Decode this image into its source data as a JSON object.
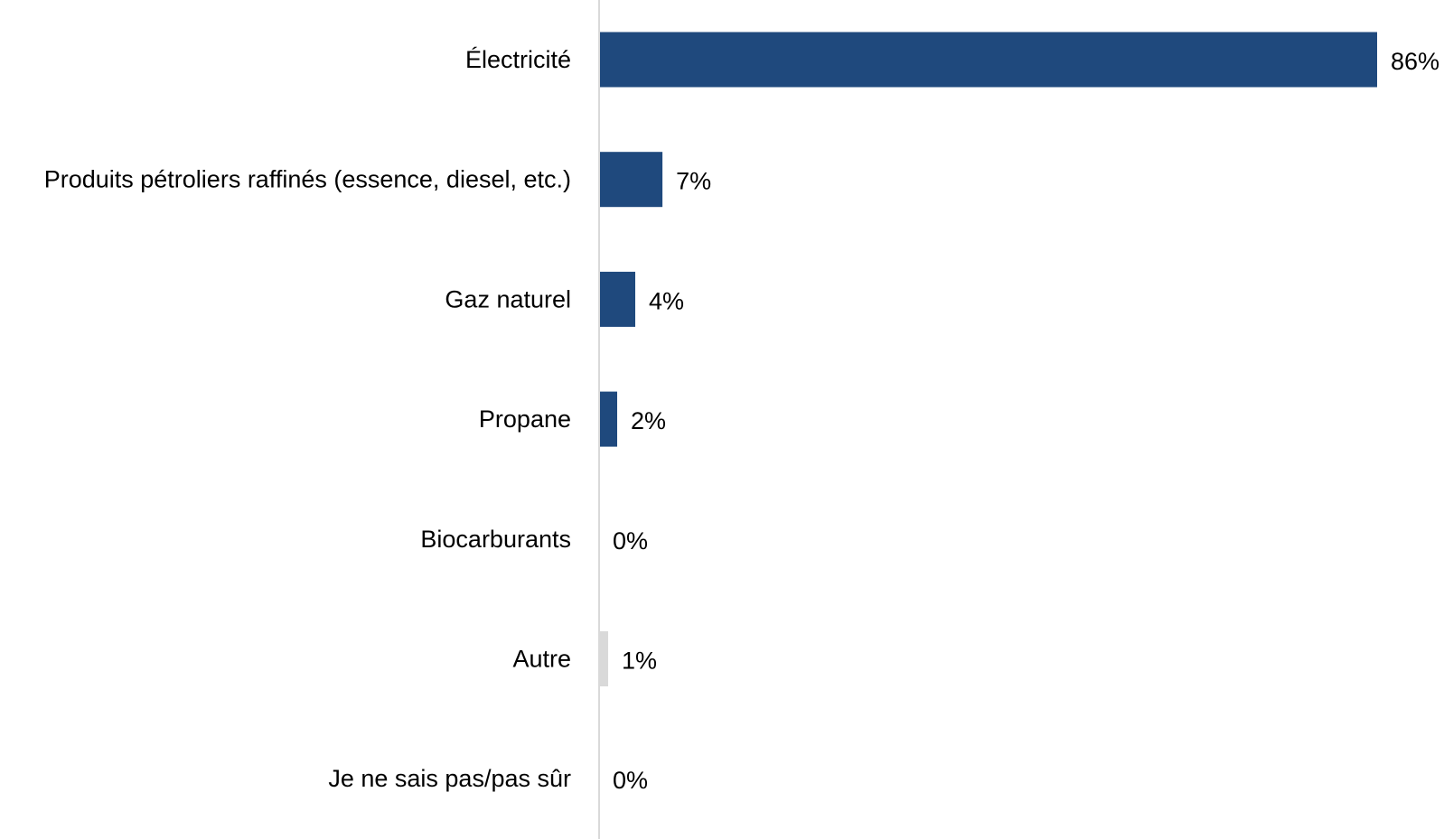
{
  "chart_data": {
    "type": "bar",
    "orientation": "horizontal",
    "title": "",
    "xlabel": "",
    "ylabel": "",
    "grid": false,
    "legend": "none",
    "xlim": [
      0,
      86
    ],
    "categories": [
      "Électricité",
      "Produits pétroliers raffinés (essence, diesel, etc.)",
      "Gaz naturel",
      "Propane",
      "Biocarburants",
      "Autre",
      "Je ne sais pas/pas sûr"
    ],
    "values": [
      86,
      7,
      4,
      2,
      0,
      1,
      0
    ],
    "value_labels": [
      "86%",
      "7%",
      "4%",
      "2%",
      "0%",
      "1%",
      "0%"
    ],
    "bar_colors": [
      "#1f497d",
      "#1f497d",
      "#1f497d",
      "#1f497d",
      "#1f497d",
      "#d9d9d9",
      "#d9d9d9"
    ],
    "axis_color": "#d9d9d9"
  }
}
